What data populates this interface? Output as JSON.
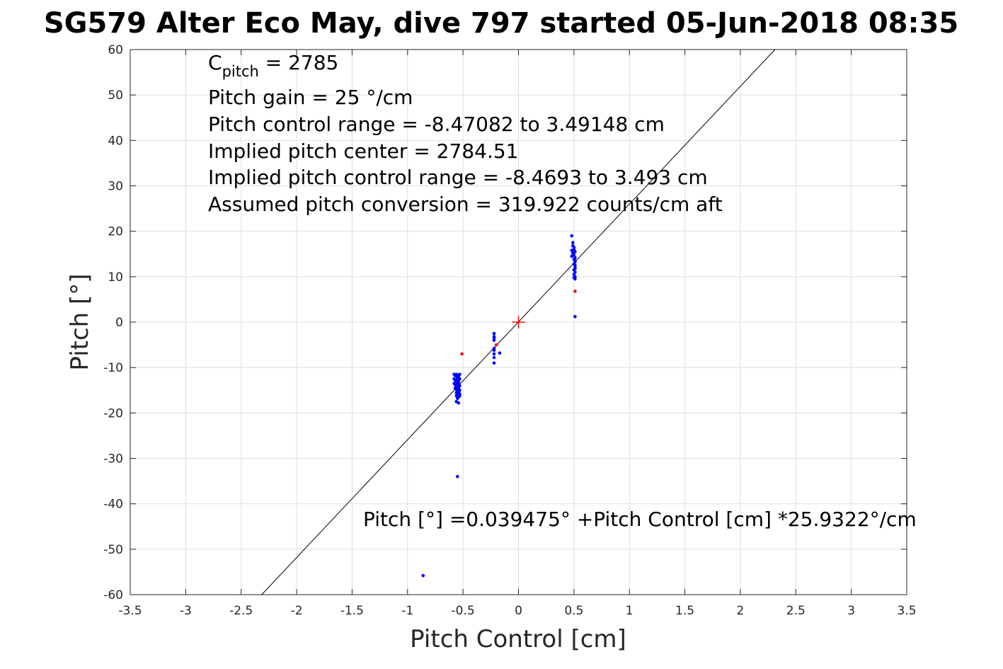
{
  "chart_data": {
    "type": "scatter",
    "title": "SG579 Alter Eco May, dive 797 started 05-Jun-2018 08:35",
    "xlabel": "Pitch Control [cm]",
    "ylabel": "Pitch [°]",
    "xlim": [
      -3.5,
      3.5
    ],
    "ylim": [
      -60,
      60
    ],
    "x_ticks": [
      -3.5,
      -3,
      -2.5,
      -2,
      -1.5,
      -1,
      -0.5,
      0,
      0.5,
      1,
      1.5,
      2,
      2.5,
      3,
      3.5
    ],
    "y_ticks": [
      -60,
      -50,
      -40,
      -30,
      -20,
      -10,
      0,
      10,
      20,
      30,
      40,
      50,
      60
    ],
    "x_tick_labels": [
      "-3.5",
      "-3",
      "-2.5",
      "-2",
      "-1.5",
      "-1",
      "-0.5",
      "0",
      "0.5",
      "1",
      "1.5",
      "2",
      "2.5",
      "3",
      "3.5"
    ],
    "y_tick_labels": [
      "-60",
      "-50",
      "-40",
      "-30",
      "-20",
      "-10",
      "0",
      "10",
      "20",
      "30",
      "40",
      "50",
      "60"
    ],
    "grid": true,
    "annotations": {
      "cpitch_base": "C",
      "cpitch_sub": "pitch",
      "cpitch_value": " = 2785",
      "pitch_gain": "Pitch gain = 25 °/cm",
      "control_range": "Pitch control range = -8.47082 to 3.49148 cm",
      "implied_center": "Implied pitch center = 2784.51",
      "implied_range": "Implied pitch control range = -8.4693 to 3.493 cm",
      "conversion": "Assumed pitch conversion = 319.922 counts/cm aft",
      "fit_equation": "Pitch [°] =0.039475° +Pitch Control [cm] *25.9322°/cm"
    },
    "fit_line": {
      "intercept": 0.039475,
      "slope": 25.9322,
      "color": "#000000"
    },
    "center_marker": {
      "x": 0,
      "y": 0,
      "color": "#ff0000",
      "symbol": "+"
    },
    "series": [
      {
        "color": "#0000ff",
        "x": [
          -0.58,
          -0.57,
          -0.56,
          -0.55,
          -0.54,
          -0.53,
          -0.58,
          -0.57,
          -0.56,
          -0.55,
          -0.54,
          -0.53,
          -0.58,
          -0.57,
          -0.56,
          -0.55,
          -0.54,
          -0.53,
          -0.57,
          -0.56,
          -0.55,
          -0.54,
          -0.53,
          -0.56,
          -0.55,
          -0.54,
          -0.56,
          -0.55,
          -0.54,
          -0.53,
          -0.56,
          -0.54,
          -0.55,
          -0.53,
          -0.55,
          -0.86,
          -0.22,
          -0.22,
          -0.22,
          -0.22,
          -0.22,
          -0.22,
          -0.22,
          -0.22,
          -0.22,
          -0.17,
          0.48,
          0.49,
          0.49,
          0.48,
          0.49,
          0.48,
          0.5,
          0.5,
          0.51,
          0.5,
          0.51,
          0.5,
          0.51,
          0.51,
          0.5,
          0.51,
          0.5,
          0.51,
          0.5,
          0.51,
          0.51,
          0.51,
          0.51,
          0.51,
          0.5
        ],
        "y": [
          -11.5,
          -11.8,
          -11.5,
          -11.8,
          -12.0,
          -11.5,
          -12.5,
          -12.8,
          -13.0,
          -12.5,
          -13.0,
          -12.5,
          -13.5,
          -13.8,
          -13.5,
          -14.0,
          -13.5,
          -14.0,
          -14.5,
          -14.8,
          -15.0,
          -14.5,
          -15.0,
          -15.5,
          -15.8,
          -15.5,
          -16.2,
          -16.0,
          -16.5,
          -15.8,
          -17.5,
          -17.8,
          -16.8,
          -16.2,
          -12.2,
          -55.8,
          -2.5,
          -3.5,
          -4.0,
          -5.8,
          -6.2,
          -7.0,
          -7.8,
          -9.0,
          -3.2,
          -6.8,
          19.0,
          17.5,
          16.8,
          15.8,
          15.2,
          14.5,
          16.0,
          14.8,
          14.2,
          13.8,
          13.2,
          12.8,
          12.5,
          12.0,
          11.5,
          11.0,
          10.5,
          10.0,
          9.8,
          9.5,
          15.5,
          13.5,
          11.8,
          1.2,
          16.5
        ]
      },
      {
        "color": "#0000ff",
        "x": [
          -0.55
        ],
        "y": [
          -34.0
        ]
      },
      {
        "color": "#ff0000",
        "x": [
          -0.51,
          -0.2,
          0.51
        ],
        "y": [
          -7.0,
          -5.0,
          6.8
        ]
      }
    ]
  }
}
